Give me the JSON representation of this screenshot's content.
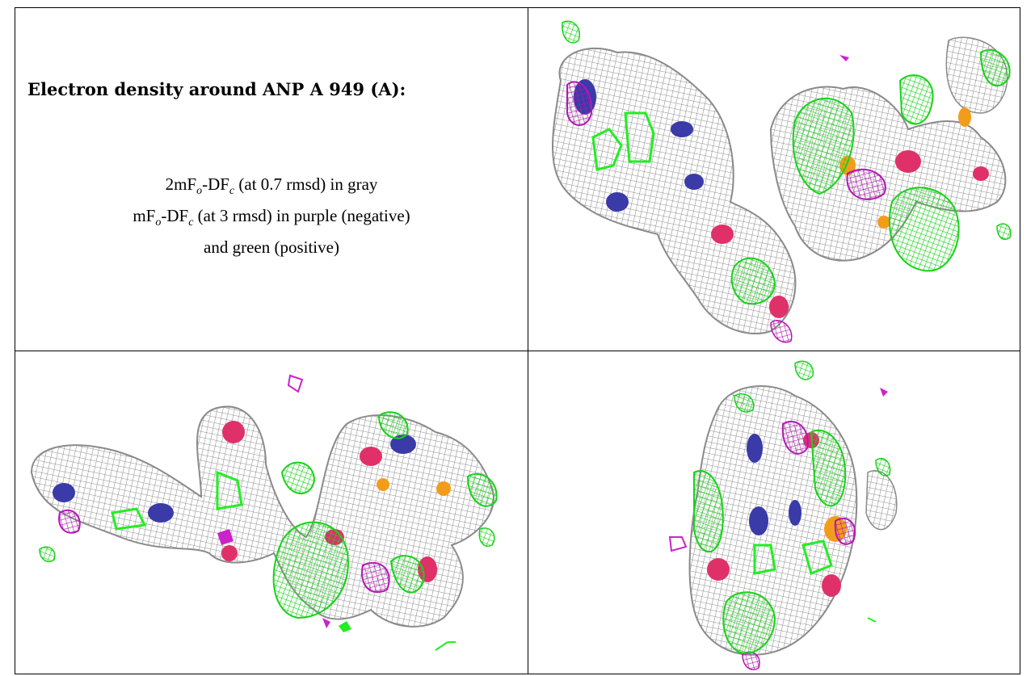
{
  "title": "Electron density around ANP A 949 (A):",
  "legend": {
    "line1": {
      "prefix": "2mF",
      "sub1": "o",
      "mid": "-DF",
      "sub2": "c",
      "suffix": " (at 0.7 rmsd) in gray"
    },
    "line2": {
      "prefix": "mF",
      "sub1": "o",
      "mid": "-DF",
      "sub2": "c",
      "suffix": " (at 3 rmsd) in purple (negative)"
    },
    "line3": "and green (positive)"
  },
  "colors": {
    "mesh_gray": "#9a9a9a",
    "positive_green": "#22ee22",
    "negative_purple": "#cc22cc",
    "nitrogen_blue": "#3a3aa8",
    "oxygen_red": "#e0306a",
    "phosphorus_orange": "#f39c1a"
  },
  "views": [
    {
      "name": "view-top-right"
    },
    {
      "name": "view-bottom-left"
    },
    {
      "name": "view-bottom-right"
    }
  ]
}
